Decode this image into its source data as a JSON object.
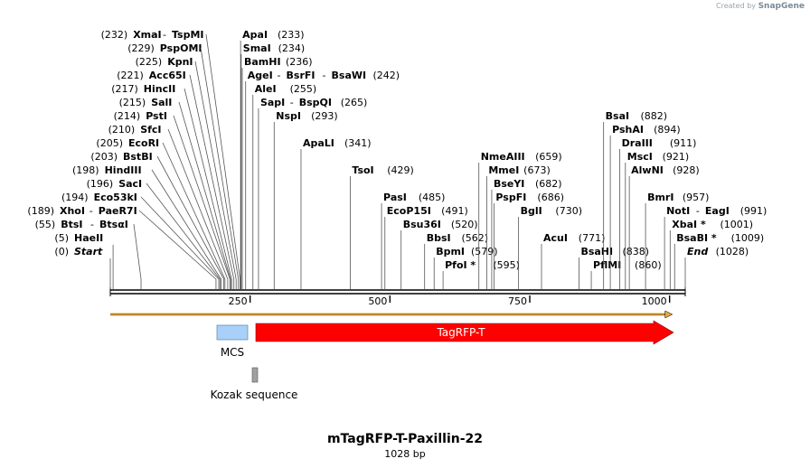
{
  "brand": {
    "prefix": "Created by",
    "name": "SnapGene"
  },
  "plasmid": {
    "name": "mTagRFP-T-Paxillin-22",
    "length_label": "1028 bp",
    "length": 1028
  },
  "ruler_ticks": [
    "250",
    "500",
    "750",
    "1000"
  ],
  "ruler_tick_values": [
    250,
    500,
    750,
    1000
  ],
  "sites": [
    {
      "pos": "(232)",
      "name": "XmaI",
      "name2": "TspMI",
      "bp": 232,
      "row": 0
    },
    {
      "pos": "(229)",
      "name": "PspOMI",
      "name2": "",
      "bp": 229,
      "row": 1
    },
    {
      "pos": "(225)",
      "name": "KpnI",
      "name2": "",
      "bp": 225,
      "row": 2
    },
    {
      "pos": "(221)",
      "name": "Acc65I",
      "name2": "",
      "bp": 221,
      "row": 3
    },
    {
      "pos": "(217)",
      "name": "HincII",
      "name2": "",
      "bp": 217,
      "row": 4
    },
    {
      "pos": "(215)",
      "name": "SalI",
      "name2": "",
      "bp": 215,
      "row": 5
    },
    {
      "pos": "(214)",
      "name": "PstI",
      "name2": "",
      "bp": 214,
      "row": 6
    },
    {
      "pos": "(210)",
      "name": "SfcI",
      "name2": "",
      "bp": 210,
      "row": 7
    },
    {
      "pos": "(205)",
      "name": "EcoRI",
      "name2": "",
      "bp": 205,
      "row": 8
    },
    {
      "pos": "(203)",
      "name": "BstBI",
      "name2": "",
      "bp": 203,
      "row": 9
    },
    {
      "pos": "(198)",
      "name": "HindIII",
      "name2": "",
      "bp": 198,
      "row": 10
    },
    {
      "pos": "(196)",
      "name": "SacI",
      "name2": "",
      "bp": 196,
      "row": 11
    },
    {
      "pos": "(194)",
      "name": "Eco53kI",
      "name2": "",
      "bp": 194,
      "row": 12
    },
    {
      "pos": "(189)",
      "name": "XhoI",
      "name2": "PaeR7I",
      "bp": 189,
      "row": 13
    },
    {
      "pos": "(55)",
      "name": "BtsI",
      "name2": "BtsαI",
      "bp": 55,
      "row": 14
    },
    {
      "pos": "(5)",
      "name": "HaeII",
      "name2": "",
      "bp": 5,
      "row": 15
    },
    {
      "pos": "(0)",
      "name": "Start",
      "name2": "",
      "bp": 0,
      "row": 16,
      "italic": true
    },
    {
      "pos": "(233)",
      "name": "ApaI",
      "name2": "",
      "bp": 233,
      "row": 0,
      "right": true
    },
    {
      "pos": "(234)",
      "name": "SmaI",
      "name2": "",
      "bp": 234,
      "row": 1,
      "right": true
    },
    {
      "pos": "(236)",
      "name": "BamHI",
      "name2": "",
      "bp": 236,
      "row": 2,
      "right": true
    },
    {
      "pos": "(242)",
      "name": "AgeI",
      "name2": "BsrFI",
      "name3": "BsaWI",
      "bp": 242,
      "row": 3,
      "right": true
    },
    {
      "pos": "(255)",
      "name": "AleI",
      "name2": "",
      "bp": 255,
      "row": 4,
      "right": true
    },
    {
      "pos": "(265)",
      "name": "SapI",
      "name2": "BspQI",
      "bp": 265,
      "row": 5,
      "right": true
    },
    {
      "pos": "(293)",
      "name": "NspI",
      "name2": "",
      "bp": 293,
      "row": 6,
      "right": true
    },
    {
      "pos": "(341)",
      "name": "ApaLI",
      "name2": "",
      "bp": 341,
      "row": 8,
      "right": true
    },
    {
      "pos": "(429)",
      "name": "TsoI",
      "name2": "",
      "bp": 429,
      "row": 10,
      "right": true
    },
    {
      "pos": "(485)",
      "name": "PasI",
      "name2": "",
      "bp": 485,
      "row": 12,
      "right": true
    },
    {
      "pos": "(491)",
      "name": "EcoP15I",
      "name2": "",
      "bp": 491,
      "row": 13,
      "right": true
    },
    {
      "pos": "(520)",
      "name": "Bsu36I",
      "name2": "",
      "bp": 520,
      "row": 14,
      "right": true
    },
    {
      "pos": "(562)",
      "name": "BbsI",
      "name2": "",
      "bp": 562,
      "row": 15,
      "right": true
    },
    {
      "pos": "(579)",
      "name": "BpmI",
      "name2": "",
      "bp": 579,
      "row": 16,
      "right": true
    },
    {
      "pos": "(595)",
      "name": "PfoI *",
      "name2": "",
      "bp": 595,
      "row": 17,
      "right": true
    },
    {
      "pos": "(659)",
      "name": "NmeAIII",
      "name2": "",
      "bp": 659,
      "row": 9,
      "right": true
    },
    {
      "pos": "(673)",
      "name": "MmeI",
      "name2": "",
      "bp": 673,
      "row": 10,
      "right": true
    },
    {
      "pos": "(682)",
      "name": "BseYI",
      "name2": "",
      "bp": 682,
      "row": 11,
      "right": true
    },
    {
      "pos": "(686)",
      "name": "PspFI",
      "name2": "",
      "bp": 686,
      "row": 12,
      "right": true
    },
    {
      "pos": "(730)",
      "name": "BglI",
      "name2": "",
      "bp": 730,
      "row": 13,
      "right": true
    },
    {
      "pos": "(771)",
      "name": "AcuI",
      "name2": "",
      "bp": 771,
      "row": 15,
      "right": true
    },
    {
      "pos": "(838)",
      "name": "BsaHI",
      "name2": "",
      "bp": 838,
      "row": 16,
      "right": true
    },
    {
      "pos": "(860)",
      "name": "PflMI",
      "name2": "",
      "bp": 860,
      "row": 17,
      "right": true
    },
    {
      "pos": "(882)",
      "name": "BsaI",
      "name2": "",
      "bp": 882,
      "row": 6,
      "right": true
    },
    {
      "pos": "(894)",
      "name": "PshAI",
      "name2": "",
      "bp": 894,
      "row": 7,
      "right": true
    },
    {
      "pos": "(911)",
      "name": "DraIII",
      "name2": "",
      "bp": 911,
      "row": 8,
      "right": true
    },
    {
      "pos": "(921)",
      "name": "MscI",
      "name2": "",
      "bp": 921,
      "row": 9,
      "right": true
    },
    {
      "pos": "(928)",
      "name": "AlwNI",
      "name2": "",
      "bp": 928,
      "row": 10,
      "right": true
    },
    {
      "pos": "(957)",
      "name": "BmrI",
      "name2": "",
      "bp": 957,
      "row": 12,
      "right": true
    },
    {
      "pos": "(991)",
      "name": "NotI",
      "name2": "EagI",
      "bp": 991,
      "row": 13,
      "right": true
    },
    {
      "pos": "(1001)",
      "name": "XbaI *",
      "name2": "",
      "bp": 1001,
      "row": 14,
      "right": true
    },
    {
      "pos": "(1009)",
      "name": "BsaBI *",
      "name2": "",
      "bp": 1009,
      "row": 15,
      "right": true
    },
    {
      "pos": "(1028)",
      "name": "End",
      "name2": "",
      "bp": 1028,
      "row": 16,
      "right": true,
      "italic": true
    }
  ],
  "features": [
    {
      "name": "MCS",
      "label": "MCS",
      "type": "box",
      "start": 189,
      "end": 244,
      "color": "#a8d0f8"
    },
    {
      "name": "TagRFP-T",
      "label": "TagRFP-T",
      "type": "arrow",
      "start": 258,
      "end": 1005,
      "color": "#ff0000"
    },
    {
      "name": "Kozak sequence",
      "label": "Kozak sequence",
      "type": "small-box",
      "start": 250,
      "end": 258,
      "color": "#a0a0a0"
    }
  ],
  "colors": {
    "backbone": "#000000",
    "orf": "#e8a838",
    "tagrfp": "#ff0000",
    "mcs": "#a8d0f8",
    "kozak": "#a0a0a0"
  }
}
